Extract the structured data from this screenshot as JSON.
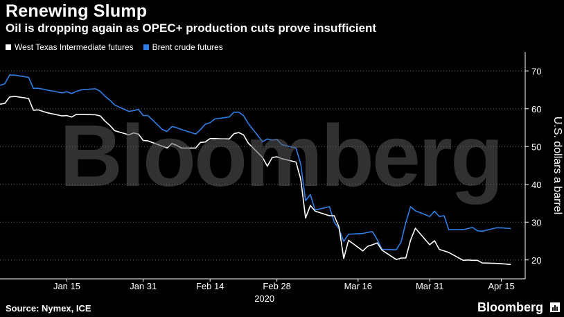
{
  "header": {
    "title": "Renewing Slump",
    "subtitle": "Oil is dropping again as OPEC+ production cuts prove insufficient"
  },
  "legend": [
    {
      "label": "West Texas Intermediate futures",
      "color": "#ffffff"
    },
    {
      "label": "Brent crude futures",
      "color": "#2e7fe8"
    }
  ],
  "footer": {
    "source": "Source: Nymex, ICE",
    "logo": "Bloomberg"
  },
  "watermark": "Bloomberg",
  "chart_data": {
    "type": "line",
    "title": "Renewing Slump",
    "subtitle": "Oil is dropping again as OPEC+ production cuts prove insufficient",
    "ylabel": "U.S. dollars a barrel",
    "xlabel": "2020",
    "ylim": [
      15,
      75
    ],
    "yticks": [
      20,
      30,
      40,
      50,
      60,
      70
    ],
    "xticks": [
      {
        "label": "Jan 15",
        "day": 14
      },
      {
        "label": "Jan 31",
        "day": 30
      },
      {
        "label": "Feb 14",
        "day": 44
      },
      {
        "label": "Feb 28",
        "day": 58
      },
      {
        "label": "Mar 16",
        "day": 75
      },
      {
        "label": "Mar 31",
        "day": 90
      },
      {
        "label": "Apr 15",
        "day": 105
      }
    ],
    "year_label": "2020",
    "xlim_days": [
      0,
      110
    ],
    "legend_position": "top-left",
    "grid": "dotted-horizontal",
    "series": [
      {
        "name": "Brent crude futures",
        "color": "#2e7fe8",
        "days": [
          0,
          1,
          2,
          3,
          6,
          7,
          8,
          9,
          10,
          13,
          14,
          15,
          16,
          17,
          20,
          21,
          22,
          23,
          24,
          27,
          28,
          29,
          30,
          31,
          34,
          35,
          36,
          37,
          38,
          41,
          42,
          43,
          44,
          45,
          48,
          49,
          50,
          51,
          52,
          55,
          56,
          57,
          58,
          59,
          62,
          63,
          64,
          65,
          66,
          69,
          70,
          71,
          72,
          73,
          76,
          77,
          78,
          79,
          80,
          83,
          84,
          85,
          86,
          87,
          90,
          91,
          92,
          93,
          94,
          97,
          98,
          99,
          100,
          101,
          104,
          105,
          106,
          107
        ],
        "values": [
          66.2,
          66.6,
          68.9,
          68.9,
          68.3,
          65.4,
          65.4,
          65.2,
          64.9,
          64.2,
          64.5,
          64.0,
          64.6,
          65.0,
          65.3,
          64.6,
          63.3,
          62.3,
          61.0,
          59.3,
          59.5,
          59.8,
          58.2,
          58.2,
          54.5,
          54.0,
          55.3,
          55.0,
          54.5,
          53.3,
          54.5,
          55.9,
          56.3,
          57.3,
          57.8,
          59.1,
          59.1,
          58.2,
          56.1,
          51.3,
          52.0,
          51.7,
          51.9,
          50.5,
          49.6,
          45.3,
          35.7,
          37.3,
          33.2,
          34.1,
          30.0,
          28.2,
          24.9,
          26.8,
          27.0,
          27.3,
          27.5,
          25.4,
          22.8,
          22.7,
          24.7,
          29.9,
          34.1,
          33.0,
          31.5,
          32.9,
          31.5,
          31.7,
          28.0,
          28.0,
          28.3,
          28.6,
          27.7,
          27.6,
          28.5,
          28.5,
          28.4,
          28.3
        ]
      },
      {
        "name": "West Texas Intermediate futures",
        "color": "#ffffff",
        "days": [
          0,
          1,
          2,
          3,
          6,
          7,
          8,
          9,
          10,
          13,
          14,
          15,
          16,
          17,
          20,
          21,
          22,
          23,
          24,
          27,
          28,
          29,
          30,
          31,
          34,
          35,
          36,
          37,
          38,
          41,
          42,
          43,
          44,
          45,
          48,
          49,
          50,
          51,
          52,
          55,
          56,
          57,
          58,
          59,
          62,
          63,
          64,
          65,
          66,
          69,
          70,
          71,
          72,
          73,
          76,
          77,
          78,
          79,
          80,
          83,
          84,
          85,
          86,
          87,
          90,
          91,
          92,
          93,
          94,
          97,
          98,
          99,
          100,
          101,
          104,
          105,
          106,
          107
        ],
        "values": [
          61.2,
          61.4,
          63.1,
          63.3,
          62.7,
          59.6,
          59.7,
          59.3,
          58.9,
          58.1,
          58.2,
          57.8,
          58.5,
          58.5,
          58.4,
          58.1,
          56.7,
          55.6,
          54.2,
          53.1,
          53.6,
          53.3,
          51.6,
          51.5,
          50.1,
          49.6,
          50.8,
          50.3,
          49.6,
          49.6,
          51.1,
          51.2,
          52.1,
          52.1,
          52.0,
          53.4,
          53.7,
          53.1,
          50.9,
          47.1,
          44.8,
          47.1,
          47.3,
          46.8,
          45.9,
          41.3,
          31.1,
          34.4,
          32.9,
          31.7,
          31.7,
          28.7,
          20.4,
          25.2,
          22.4,
          23.6,
          24.0,
          24.5,
          22.6,
          20.1,
          20.5,
          20.5,
          25.3,
          28.4,
          24.0,
          25.1,
          22.8,
          22.4,
          22.0,
          19.9,
          20.0,
          19.9,
          19.9,
          19.2,
          19.1,
          19.0,
          18.9,
          18.8
        ]
      }
    ]
  }
}
